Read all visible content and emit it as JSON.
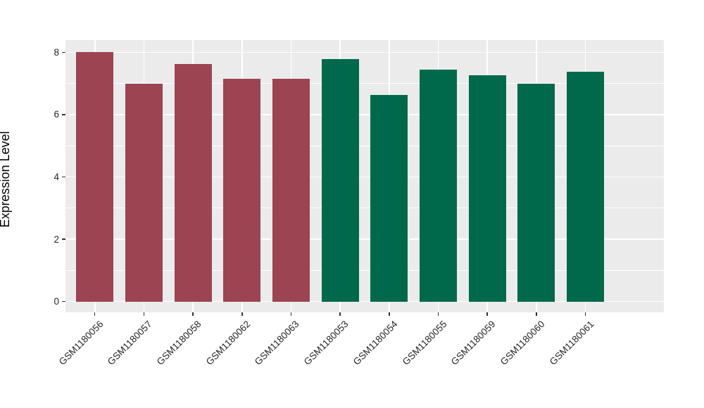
{
  "chart_data": {
    "type": "bar",
    "title": "",
    "xlabel": "",
    "ylabel": "Expression Level",
    "ylim": [
      0,
      8.4
    ],
    "y_ticks": [
      0,
      2,
      4,
      6,
      8
    ],
    "grid": "major-white-and-minor-white-on-grey-panel",
    "legend_position": "none",
    "panel_background": "#EBEBEB",
    "grid_color": "#FFFFFF",
    "tick_color": "#333333",
    "bars": [
      {
        "label": "GSM1180056",
        "value": 8.01,
        "group": "maroon"
      },
      {
        "label": "GSM1180057",
        "value": 7.0,
        "group": "maroon"
      },
      {
        "label": "GSM1180058",
        "value": 7.62,
        "group": "maroon"
      },
      {
        "label": "GSM1180062",
        "value": 7.15,
        "group": "maroon"
      },
      {
        "label": "GSM1180063",
        "value": 7.15,
        "group": "maroon"
      },
      {
        "label": "GSM1180053",
        "value": 7.79,
        "group": "green"
      },
      {
        "label": "GSM1180054",
        "value": 6.62,
        "group": "green"
      },
      {
        "label": "GSM1180055",
        "value": 7.44,
        "group": "green"
      },
      {
        "label": "GSM1180059",
        "value": 7.26,
        "group": "green"
      },
      {
        "label": "GSM1180060",
        "value": 6.98,
        "group": "green"
      },
      {
        "label": "GSM1180061",
        "value": 7.38,
        "group": "green"
      }
    ],
    "group_colors": {
      "maroon": "#9C4452",
      "green": "#00694B"
    }
  }
}
